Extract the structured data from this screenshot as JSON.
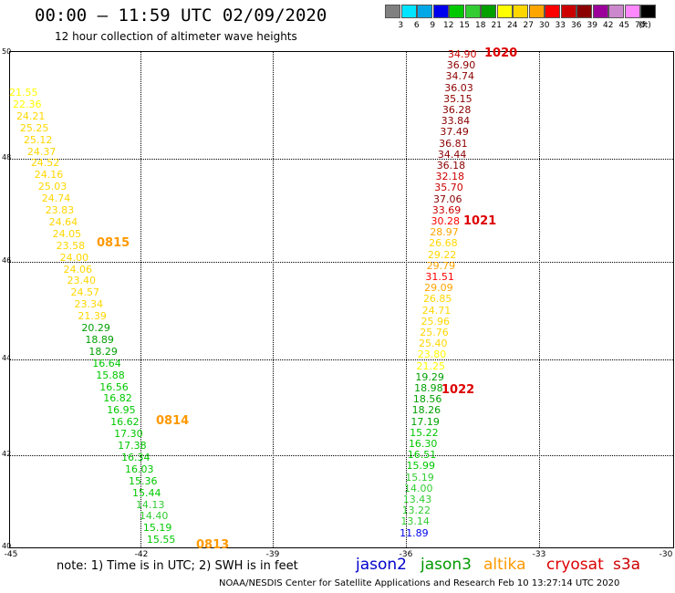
{
  "title": "00:00 – 11:59 UTC 02/09/2020",
  "subtitle": "12 hour collection of altimeter wave heights",
  "scale": {
    "unit": "(ft)",
    "bins": [
      {
        "label": "3",
        "color": "#808080"
      },
      {
        "label": "6",
        "color": "#00e5ff"
      },
      {
        "label": "9",
        "color": "#00a8e8"
      },
      {
        "label": "12",
        "color": "#0000ee"
      },
      {
        "label": "15",
        "color": "#00c800"
      },
      {
        "label": "18",
        "color": "#32cd32"
      },
      {
        "label": "21",
        "color": "#00a000"
      },
      {
        "label": "24",
        "color": "#ffff00"
      },
      {
        "label": "27",
        "color": "#ffd700"
      },
      {
        "label": "30",
        "color": "#ffa500"
      },
      {
        "label": "33",
        "color": "#ff0000"
      },
      {
        "label": "36",
        "color": "#cc0000"
      },
      {
        "label": "39",
        "color": "#8b0000"
      },
      {
        "label": "42",
        "color": "#9b009b"
      },
      {
        "label": "45",
        "color": "#cc88cc"
      },
      {
        "label": "70",
        "color": "#ff88ff"
      },
      {
        "label": "",
        "color": "#000000"
      }
    ]
  },
  "axes": {
    "x_ticks": [
      "-45",
      "-42",
      "-39",
      "-36",
      "-33",
      "-30"
    ],
    "y_ticks": [
      "50",
      "48",
      "46",
      "44",
      "42",
      "40"
    ]
  },
  "passes": [
    {
      "label": "1020",
      "color": "#dd0000"
    },
    {
      "label": "1021",
      "color": "#dd0000"
    },
    {
      "label": "1022",
      "color": "#dd0000"
    },
    {
      "label": "0815",
      "color": "#ff9900"
    },
    {
      "label": "0814",
      "color": "#ff9900"
    },
    {
      "label": "0813",
      "color": "#ff9900"
    }
  ],
  "tracks": [
    {
      "satellite": "cryosat-s3a",
      "values": [
        "34.90",
        "36.90",
        "34.74",
        "36.03",
        "35.15",
        "36.28",
        "33.84",
        "37.49",
        "36.81",
        "34.44",
        "36.18",
        "32.18",
        "35.70",
        "37.06",
        "33.69",
        "30.28",
        "28.97",
        "26.68",
        "29.22",
        "29.79",
        "31.51",
        "29.09",
        "26.85",
        "24.71",
        "25.96",
        "25.76",
        "25.40",
        "23.80",
        "21.25",
        "19.29",
        "18.98",
        "18.56",
        "18.26",
        "17.19",
        "15.22",
        "16.30",
        "16.51",
        "15.99",
        "15.19",
        "14.00",
        "13.43",
        "13.22",
        "13.14",
        "11.89"
      ],
      "colors": [
        "#cc0000",
        "#8b0000",
        "#8b0000",
        "#8b0000",
        "#8b0000",
        "#8b0000",
        "#8b0000",
        "#8b0000",
        "#8b0000",
        "#8b0000",
        "#8b0000",
        "#cc0000",
        "#cc0000",
        "#8b0000",
        "#cc0000",
        "#ff0000",
        "#ffa500",
        "#ffd700",
        "#ffd700",
        "#ffa500",
        "#ff0000",
        "#ffa500",
        "#ffd700",
        "#ffd700",
        "#ffd700",
        "#ffd700",
        "#ffd700",
        "#ffff00",
        "#ffff00",
        "#00a000",
        "#00a000",
        "#00a000",
        "#00a000",
        "#00a000",
        "#00c800",
        "#00c800",
        "#00c800",
        "#00c800",
        "#32cd32",
        "#32cd32",
        "#32cd32",
        "#32cd32",
        "#32cd32",
        "#0000ee"
      ]
    },
    {
      "satellite": "altika",
      "values": [
        "21.55",
        "22.36",
        "24.21",
        "25.25",
        "25.12",
        "24.37",
        "24.52",
        "24.16",
        "25.03",
        "24.74",
        "23.83",
        "24.64",
        "24.05",
        "23.58",
        "24.00",
        "24.06",
        "23.40",
        "24.57",
        "23.34",
        "21.39",
        "20.29",
        "18.89",
        "18.29",
        "16.64",
        "15.88",
        "16.56",
        "16.82",
        "16.95",
        "16.62",
        "17.30",
        "17.38",
        "16.34",
        "16.03",
        "15.36",
        "15.44",
        "14.13",
        "14.40",
        "15.19",
        "15.55"
      ],
      "colors": [
        "#ffff00",
        "#ffff00",
        "#ffd700",
        "#ffd700",
        "#ffd700",
        "#ffd700",
        "#ffd700",
        "#ffd700",
        "#ffd700",
        "#ffd700",
        "#ffd700",
        "#ffd700",
        "#ffd700",
        "#ffd700",
        "#ffd700",
        "#ffd700",
        "#ffd700",
        "#ffd700",
        "#ffd700",
        "#ffd700",
        "#00a000",
        "#00a000",
        "#00a000",
        "#00c800",
        "#00c800",
        "#00c800",
        "#00c800",
        "#00c800",
        "#00c800",
        "#00c800",
        "#00c800",
        "#00c800",
        "#00c800",
        "#00c800",
        "#00c800",
        "#32cd32",
        "#32cd32",
        "#00c800",
        "#00c800"
      ]
    }
  ],
  "legend": {
    "note": "note: 1) Time is in UTC; 2) SWH is in feet",
    "satellites": [
      {
        "label": "jason2",
        "color": "#0000cc"
      },
      {
        "label": "jason3",
        "color": "#009900"
      },
      {
        "label": "altika",
        "color": "#ff9900"
      },
      {
        "label": "cryosat",
        "color": "#dd0000"
      },
      {
        "label": "s3a",
        "color": "#cc0000"
      }
    ]
  },
  "credit": "NOAA/NESDIS Center for Satellite Applications and Research   Feb 10 13:27:14 UTC 2020"
}
